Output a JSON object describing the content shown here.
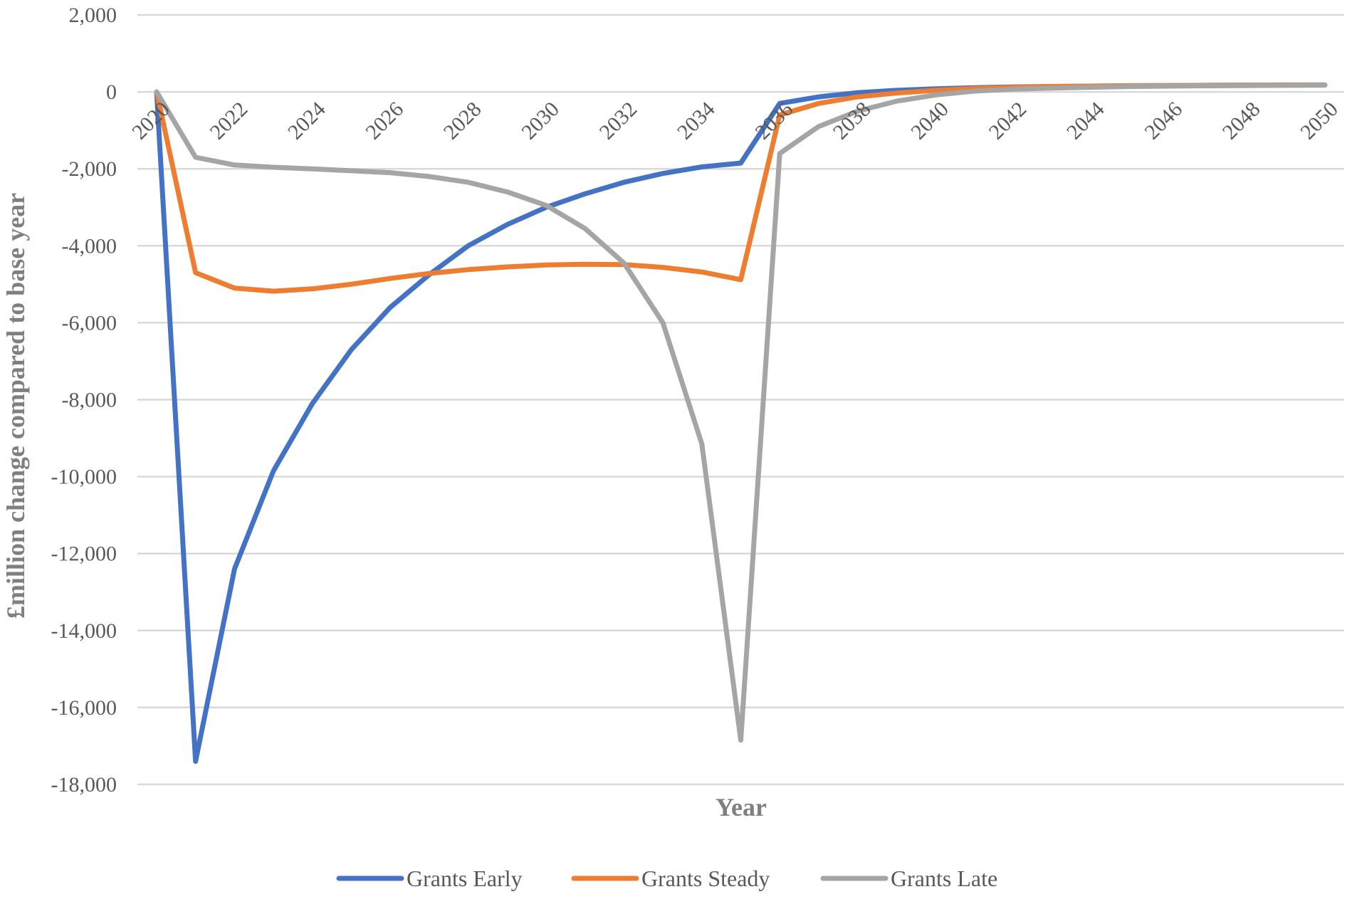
{
  "chart_data": {
    "type": "line",
    "title": "",
    "xlabel": "Year",
    "ylabel": "£million change compared to base year",
    "ylim": [
      -18000,
      2000
    ],
    "yticks": [
      2000,
      0,
      -2000,
      -4000,
      -6000,
      -8000,
      -10000,
      -12000,
      -14000,
      -16000,
      -18000
    ],
    "ytick_labels": [
      "2,000",
      "0",
      "-2,000",
      "-4,000",
      "-6,000",
      "-8,000",
      "-10,000",
      "-12,000",
      "-14,000",
      "-16,000",
      "-18,000"
    ],
    "xticks": [
      2020,
      2022,
      2024,
      2026,
      2028,
      2030,
      2032,
      2034,
      2036,
      2038,
      2040,
      2042,
      2044,
      2046,
      2048,
      2050
    ],
    "xtick_labels": [
      "2020",
      "2022",
      "2024",
      "2026",
      "2028",
      "2030",
      "2032",
      "2034",
      "2036",
      "2038",
      "2040",
      "2042",
      "2044",
      "2046",
      "2048",
      "2050"
    ],
    "grid": true,
    "legend_position": "bottom",
    "x": [
      2020,
      2021,
      2022,
      2023,
      2024,
      2025,
      2026,
      2027,
      2028,
      2029,
      2030,
      2031,
      2032,
      2033,
      2034,
      2035,
      2036,
      2037,
      2038,
      2039,
      2040,
      2041,
      2042,
      2043,
      2044,
      2045,
      2046,
      2047,
      2048,
      2049,
      2050
    ],
    "series": [
      {
        "name": "Grants Early",
        "color": "#4472C4",
        "values": [
          0,
          -17400,
          -12400,
          -9850,
          -8100,
          -6700,
          -5600,
          -4750,
          -4000,
          -3450,
          -3000,
          -2650,
          -2350,
          -2120,
          -1950,
          -1850,
          -300,
          -130,
          -20,
          40,
          80,
          110,
          130,
          140,
          150,
          160,
          165,
          170,
          175,
          180,
          180
        ]
      },
      {
        "name": "Grants Steady",
        "color": "#ED7D31",
        "values": [
          0,
          -4700,
          -5100,
          -5180,
          -5120,
          -5000,
          -4850,
          -4720,
          -4620,
          -4550,
          -4500,
          -4480,
          -4490,
          -4560,
          -4680,
          -4880,
          -600,
          -300,
          -130,
          -30,
          40,
          90,
          120,
          140,
          150,
          160,
          165,
          170,
          175,
          180,
          180
        ]
      },
      {
        "name": "Grants Late",
        "color": "#A5A5A5",
        "values": [
          0,
          -1700,
          -1900,
          -1960,
          -2000,
          -2050,
          -2100,
          -2200,
          -2350,
          -2600,
          -2950,
          -3550,
          -4450,
          -6000,
          -9150,
          -16850,
          -1600,
          -900,
          -500,
          -240,
          -80,
          20,
          70,
          100,
          120,
          140,
          150,
          160,
          165,
          170,
          175
        ]
      }
    ]
  }
}
